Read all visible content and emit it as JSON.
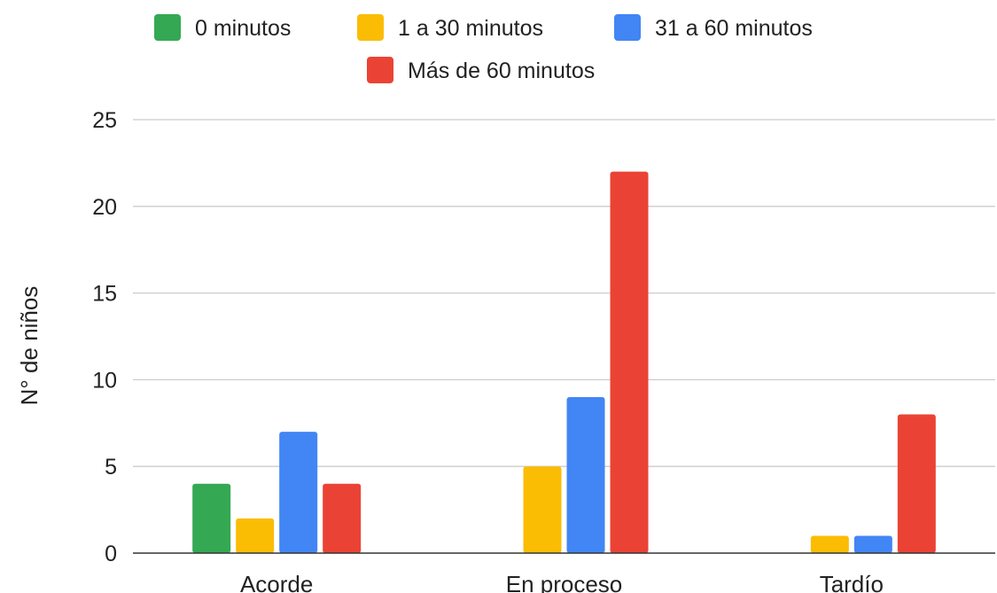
{
  "chart_data": {
    "type": "bar",
    "categories": [
      "Acorde",
      "En proceso",
      "Tardío"
    ],
    "series": [
      {
        "name": "0 minutos",
        "color": "#34a853",
        "values": [
          4,
          0,
          0
        ]
      },
      {
        "name": "1 a 30 minutos",
        "color": "#fbbc04",
        "values": [
          2,
          5,
          1
        ]
      },
      {
        "name": "31 a 60 minutos",
        "color": "#4285f4",
        "values": [
          7,
          9,
          1
        ]
      },
      {
        "name": "Más de 60 minutos",
        "color": "#ea4335",
        "values": [
          4,
          22,
          8
        ]
      }
    ],
    "title": "",
    "xlabel": "",
    "ylabel": "N° de niños",
    "ylim": [
      0,
      25
    ],
    "yticks": [
      0,
      5,
      10,
      15,
      20,
      25
    ],
    "grid": true,
    "legend_position": "top"
  }
}
